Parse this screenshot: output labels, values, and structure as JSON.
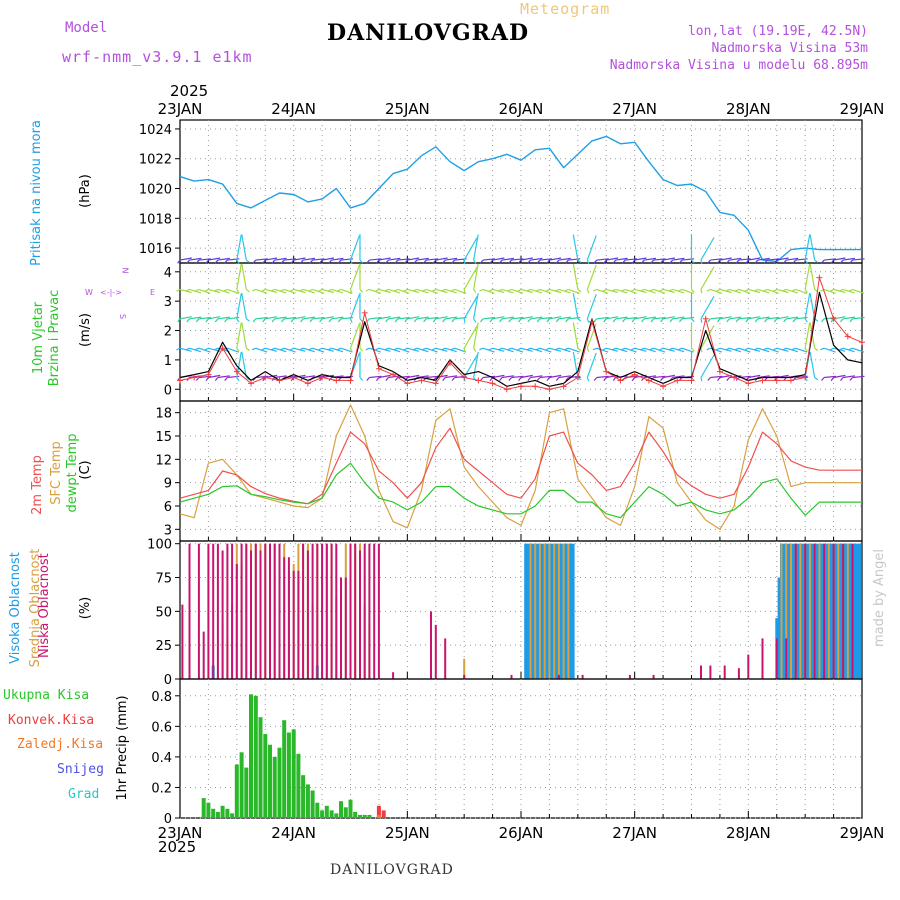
{
  "header": {
    "model_label": "Model",
    "model_name": "wrf-nmm_v3.9.1 e1km",
    "title": "DANILOVGRAD",
    "meteogram_label": "Meteogram",
    "lonlat": "lon,lat (19.19E, 42.5N)",
    "altitude": "Nadmorska Visina 53m",
    "model_altitude": "Nadmorska Visina u modelu 68.895m",
    "year_top": "2025",
    "year_bottom": "2025",
    "footer_title": "DANILOVGRAD",
    "credit": "made by Angel"
  },
  "colors": {
    "pressure": "#1ea0e6",
    "wind_speed": "#000000",
    "gust": "#f03c3c",
    "t2m": "#f05050",
    "sfc": "#d8a040",
    "dewpt": "#28c828",
    "high_cloud": "#1e9be6",
    "mid_cloud": "#d8a040",
    "low_cloud": "#c8146e",
    "total_precip": "#28b828",
    "conv_precip": "#f03c3c",
    "frozen_precip": "#f07828",
    "snow": "#5050e6",
    "hail": "#28c8c8",
    "barb_purple": "#8c28c8",
    "purple_label": "#b450dc"
  },
  "x_axis": {
    "day_labels": [
      "23JAN",
      "24JAN",
      "25JAN",
      "26JAN",
      "27JAN",
      "28JAN",
      "29JAN"
    ],
    "hours_total": 144
  },
  "panel_labels": {
    "pressure": {
      "name": "Pritisak na nivou mora",
      "unit": "(hPa)"
    },
    "wind": {
      "name1": "10m Vjetar",
      "name2": "Brzina i Pravac",
      "unit": "(m/s)",
      "compass": [
        "N",
        "S",
        "W",
        "E"
      ]
    },
    "temp": {
      "t2m": "2m Temp",
      "sfc": "SFC Temp",
      "dewpt": "dewpt Temp",
      "unit": "(C)"
    },
    "cloud": {
      "high": "Visoka Oblacnost",
      "mid": "Srednja Oblacnost",
      "low": "Niska Oblacnost",
      "unit": "(%)"
    },
    "precip": {
      "total": "Ukupna Kisa",
      "conv": "Konvek.Kisa",
      "frozen": "Zaledj.Kisa",
      "snow": "Snijeg",
      "hail": "Grad",
      "unit": "1hr Precip (mm)"
    }
  },
  "chart_data": [
    {
      "type": "line",
      "name": "sea-level-pressure",
      "ylabel": "(hPa)",
      "ylim": [
        1015,
        1024.6
      ],
      "yticks": [
        1016,
        1018,
        1020,
        1022,
        1024
      ],
      "x": [
        0,
        3,
        6,
        9,
        12,
        15,
        18,
        21,
        24,
        27,
        30,
        33,
        36,
        39,
        42,
        45,
        48,
        51,
        54,
        57,
        60,
        63,
        66,
        69,
        72,
        75,
        78,
        81,
        84,
        87,
        90,
        93,
        96,
        99,
        102,
        105,
        108,
        111,
        114,
        117,
        120,
        123,
        126,
        129,
        132,
        135,
        138,
        141,
        144
      ],
      "series": [
        {
          "values": [
            1020.8,
            1020.5,
            1020.6,
            1020.3,
            1019.0,
            1018.7,
            1019.2,
            1019.7,
            1019.6,
            1019.1,
            1019.3,
            1020.0,
            1018.7,
            1019.0,
            1020.0,
            1021.0,
            1021.3,
            1022.2,
            1022.8,
            1021.8,
            1021.2,
            1021.8,
            1022.0,
            1022.3,
            1021.9,
            1022.6,
            1022.7,
            1021.4,
            1022.3,
            1023.2,
            1023.5,
            1023.0,
            1023.1,
            1021.8,
            1020.6,
            1020.2,
            1020.3,
            1019.8,
            1018.4,
            1018.2,
            1017.2,
            1015.2,
            1015.1,
            1015.9,
            1016.0,
            1015.9,
            1015.9,
            1015.9,
            1015.9
          ]
        }
      ]
    },
    {
      "type": "line",
      "name": "wind-speed",
      "ylabel": "(m/s)",
      "ylim": [
        -0.4,
        4.3
      ],
      "yticks": [
        0,
        1,
        2,
        3,
        4
      ],
      "x": [
        0,
        3,
        6,
        9,
        12,
        15,
        18,
        21,
        24,
        27,
        30,
        33,
        36,
        39,
        42,
        45,
        48,
        51,
        54,
        57,
        60,
        63,
        66,
        69,
        72,
        75,
        78,
        81,
        84,
        87,
        90,
        93,
        96,
        99,
        102,
        105,
        108,
        111,
        114,
        117,
        120,
        123,
        126,
        129,
        132,
        135,
        138,
        141,
        144
      ],
      "series": [
        {
          "name": "speed",
          "values": [
            0.4,
            0.5,
            0.6,
            1.6,
            0.8,
            0.3,
            0.6,
            0.3,
            0.5,
            0.3,
            0.5,
            0.4,
            0.4,
            2.3,
            0.8,
            0.6,
            0.3,
            0.4,
            0.3,
            1.0,
            0.5,
            0.6,
            0.4,
            0.1,
            0.2,
            0.3,
            0.1,
            0.2,
            0.6,
            2.4,
            0.6,
            0.4,
            0.6,
            0.4,
            0.2,
            0.4,
            0.4,
            2.0,
            0.7,
            0.5,
            0.3,
            0.4,
            0.4,
            0.4,
            0.5,
            3.3,
            1.5,
            1.0,
            0.9
          ]
        },
        {
          "name": "gust",
          "values": [
            0.3,
            0.4,
            0.5,
            1.4,
            0.6,
            0.2,
            0.4,
            0.3,
            0.4,
            0.2,
            0.4,
            0.3,
            0.3,
            2.6,
            0.7,
            0.5,
            0.2,
            0.3,
            0.2,
            0.9,
            0.4,
            0.3,
            0.2,
            0.0,
            0.1,
            0.1,
            0.0,
            0.1,
            0.4,
            2.3,
            0.6,
            0.3,
            0.5,
            0.3,
            0.1,
            0.3,
            0.3,
            2.4,
            0.6,
            0.4,
            0.2,
            0.3,
            0.3,
            0.3,
            0.4,
            3.8,
            2.4,
            1.8,
            1.6
          ]
        }
      ]
    },
    {
      "type": "line",
      "name": "temperature",
      "ylabel": "(C)",
      "ylim": [
        1.5,
        19.5
      ],
      "yticks": [
        3,
        6,
        9,
        12,
        15,
        18
      ],
      "x": [
        0,
        3,
        6,
        9,
        12,
        15,
        18,
        21,
        24,
        27,
        30,
        33,
        36,
        39,
        42,
        45,
        48,
        51,
        54,
        57,
        60,
        63,
        66,
        69,
        72,
        75,
        78,
        81,
        84,
        87,
        90,
        93,
        96,
        99,
        102,
        105,
        108,
        111,
        114,
        117,
        120,
        123,
        126,
        129,
        132,
        135,
        138,
        141,
        144
      ],
      "series": [
        {
          "name": "2m Temp",
          "values": [
            7.0,
            7.5,
            8.0,
            10.5,
            10.0,
            8.5,
            7.6,
            7.0,
            6.6,
            6.3,
            7.5,
            11.5,
            15.5,
            14.0,
            10.5,
            9.0,
            7.0,
            9.0,
            13.5,
            16.0,
            12.0,
            10.5,
            9.0,
            7.5,
            7.0,
            9.5,
            15.0,
            15.5,
            11.5,
            10.0,
            8.0,
            8.5,
            11.5,
            15.5,
            13.0,
            10.0,
            8.6,
            7.5,
            7.0,
            7.5,
            11.0,
            15.5,
            14.0,
            11.8,
            11.0,
            10.6,
            10.6,
            10.6,
            10.6
          ]
        },
        {
          "name": "SFC Temp",
          "values": [
            5.0,
            4.5,
            11.5,
            12.0,
            10.0,
            7.5,
            7.0,
            6.5,
            6.0,
            5.8,
            7.0,
            15.0,
            19.0,
            15.0,
            8.0,
            4.0,
            3.2,
            8.0,
            17.0,
            18.5,
            11.0,
            8.5,
            6.5,
            4.5,
            3.5,
            8.0,
            18.0,
            18.5,
            9.5,
            7.0,
            4.5,
            3.5,
            8.5,
            17.5,
            16.0,
            9.0,
            6.5,
            4.2,
            3.0,
            6.0,
            14.5,
            18.5,
            15.0,
            8.5,
            9.0,
            9.0,
            9.0,
            9.0,
            9.0
          ]
        },
        {
          "name": "dewpt Temp",
          "values": [
            6.5,
            7.0,
            7.5,
            8.5,
            8.6,
            7.5,
            7.2,
            6.8,
            6.5,
            6.3,
            7.0,
            10.0,
            11.5,
            9.0,
            7.0,
            6.5,
            5.5,
            6.5,
            8.5,
            8.5,
            7.0,
            6.0,
            5.5,
            5.0,
            5.0,
            6.0,
            8.0,
            8.0,
            6.5,
            6.5,
            5.0,
            4.5,
            6.5,
            8.5,
            7.5,
            6.0,
            6.5,
            5.5,
            5.0,
            5.5,
            7.0,
            9.0,
            9.5,
            7.0,
            4.8,
            6.5,
            6.5,
            6.5,
            6.5
          ]
        }
      ]
    },
    {
      "type": "bar",
      "name": "cloud-cover",
      "ylabel": "(%)",
      "ylim": [
        0,
        102
      ],
      "yticks": [
        0,
        25,
        50,
        75,
        100
      ],
      "series": [
        {
          "name": "Visoka Oblacnost",
          "x": [
            7,
            29,
            73,
            73.5,
            74,
            74.5,
            75,
            75.5,
            76,
            76.5,
            77,
            77.5,
            78,
            78.5,
            79,
            79.5,
            80,
            80.5,
            81,
            81.5,
            82,
            82.5,
            83,
            126,
            126.5,
            127,
            127.5,
            128,
            128.5,
            129,
            129.5,
            130,
            130.5,
            131,
            131.5,
            132,
            132.5,
            133,
            133.5,
            134,
            134.5,
            135,
            135.5,
            136,
            136.5,
            137,
            137.5,
            138,
            138.5,
            139,
            139.5,
            140,
            140.5,
            141,
            141.5,
            142,
            142.5,
            143,
            143.5
          ],
          "values": [
            10,
            10,
            100,
            100,
            100,
            100,
            100,
            100,
            100,
            100,
            100,
            100,
            100,
            100,
            100,
            100,
            100,
            100,
            100,
            100,
            100,
            100,
            100,
            45,
            75,
            100,
            100,
            100,
            100,
            100,
            100,
            100,
            100,
            100,
            100,
            100,
            100,
            100,
            100,
            100,
            100,
            100,
            100,
            100,
            100,
            100,
            100,
            100,
            100,
            100,
            100,
            100,
            100,
            100,
            100,
            100,
            100,
            100,
            100
          ]
        },
        {
          "name": "Srednja Oblacnost",
          "x": [
            9,
            10,
            11,
            12,
            13,
            14,
            15,
            16,
            17,
            18,
            19,
            20,
            22,
            23,
            24,
            25,
            26,
            27,
            28,
            29,
            30,
            31,
            32,
            33,
            34,
            35,
            36,
            37,
            38,
            39,
            40,
            60,
            74,
            75,
            76,
            77,
            78,
            79,
            80,
            81,
            82,
            127,
            128,
            129,
            130,
            131,
            132,
            133,
            134,
            135,
            136,
            137,
            138,
            139,
            140,
            141,
            142
          ],
          "values": [
            40,
            30,
            55,
            100,
            85,
            100,
            100,
            100,
            100,
            100,
            100,
            100,
            100,
            80,
            85,
            100,
            100,
            100,
            55,
            100,
            100,
            100,
            100,
            60,
            40,
            100,
            100,
            100,
            100,
            55,
            40,
            15,
            100,
            100,
            100,
            100,
            100,
            100,
            100,
            100,
            100,
            100,
            100,
            100,
            100,
            100,
            100,
            100,
            100,
            100,
            100,
            100,
            100,
            100,
            100,
            100,
            100
          ]
        },
        {
          "name": "Niska Oblacnost",
          "x": [
            0.5,
            2,
            4,
            5,
            6,
            7,
            8,
            9,
            10,
            11,
            12,
            13,
            14,
            15,
            16,
            17,
            18,
            19,
            20,
            21,
            22,
            23,
            24,
            25,
            26,
            27,
            28,
            29,
            30,
            31,
            32,
            33,
            34,
            35,
            36,
            37,
            38,
            39,
            40,
            41,
            42,
            45,
            53,
            54,
            56,
            60,
            70,
            80,
            85,
            95,
            100,
            110,
            112,
            115,
            118,
            120,
            123,
            126,
            128,
            130,
            132,
            134,
            136,
            138,
            140,
            142
          ],
          "values": [
            55,
            100,
            100,
            35,
            100,
            100,
            100,
            95,
            100,
            100,
            85,
            100,
            100,
            95,
            100,
            95,
            100,
            100,
            100,
            100,
            90,
            90,
            80,
            80,
            100,
            95,
            100,
            100,
            100,
            100,
            100,
            100,
            75,
            75,
            100,
            100,
            95,
            100,
            100,
            100,
            100,
            5,
            50,
            40,
            30,
            3,
            3,
            3,
            3,
            3,
            3,
            10,
            10,
            10,
            8,
            18,
            30,
            30,
            30,
            100,
            100,
            100,
            100,
            100,
            100,
            100
          ]
        }
      ]
    },
    {
      "type": "bar",
      "name": "precipitation",
      "ylabel": "1hr Precip (mm)",
      "ylim": [
        0,
        0.91
      ],
      "yticks": [
        0,
        0.2,
        0.4,
        0.6,
        0.8
      ],
      "series": [
        {
          "name": "Ukupna Kisa",
          "x": [
            5,
            6,
            7,
            8,
            9,
            10,
            11,
            12,
            13,
            14,
            15,
            16,
            17,
            18,
            19,
            20,
            21,
            22,
            23,
            24,
            25,
            26,
            27,
            28,
            29,
            30,
            31,
            32,
            33,
            34,
            35,
            36,
            37,
            38,
            39,
            40
          ],
          "values": [
            0.13,
            0.1,
            0.06,
            0.04,
            0.08,
            0.06,
            0.03,
            0.35,
            0.43,
            0.33,
            0.81,
            0.8,
            0.66,
            0.55,
            0.48,
            0.4,
            0.46,
            0.64,
            0.56,
            0.58,
            0.42,
            0.28,
            0.22,
            0.18,
            0.1,
            0.05,
            0.08,
            0.05,
            0.03,
            0.11,
            0.07,
            0.12,
            0.04,
            0.02,
            0.02,
            0.02
          ]
        },
        {
          "name": "Konvek.Kisa",
          "x": [
            42,
            43
          ],
          "values": [
            0.08,
            0.05
          ]
        },
        {
          "name": "Zaledj.Kisa",
          "x": [
            42
          ],
          "values": [
            0.02
          ]
        }
      ]
    }
  ]
}
